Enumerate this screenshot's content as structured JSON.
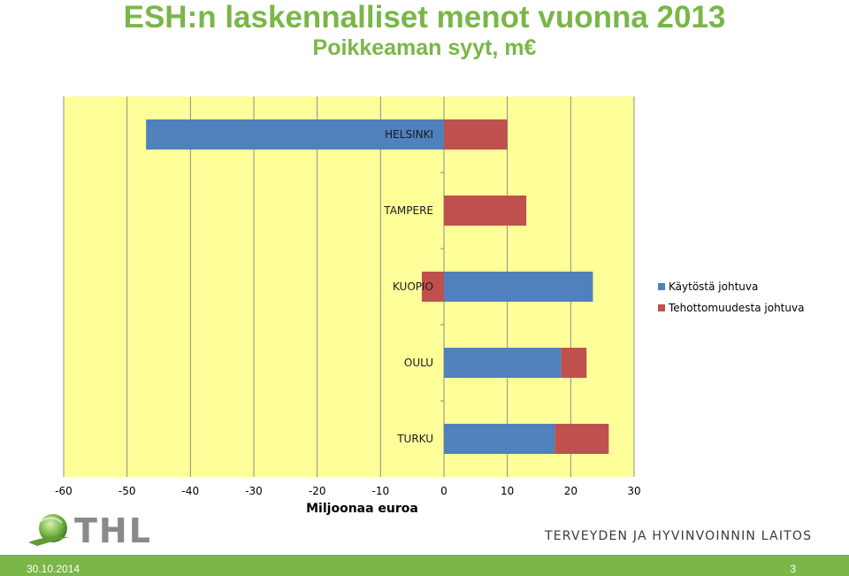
{
  "header": {
    "title": "ESH:n laskennalliset menot vuonna 2013",
    "subtitle": "Poikkeaman syyt, m€"
  },
  "colors": {
    "accent": "#7ab648",
    "plot_bg": "#ffff99",
    "series1": "#4f81bd",
    "series2": "#c0504d"
  },
  "chart_data": {
    "type": "bar",
    "orientation": "horizontal",
    "stacked": true,
    "categories": [
      "HELSINKI",
      "TAMPERE",
      "KUOPIO",
      "OULU",
      "TURKU"
    ],
    "series": [
      {
        "name": "Käytöstä johtuva",
        "values": [
          -47,
          0,
          23.5,
          18.5,
          17.5
        ]
      },
      {
        "name": "Tehottomuudesta johtuva",
        "values": [
          10,
          13,
          -3.5,
          4,
          8.5
        ]
      }
    ],
    "xlim": [
      -60,
      30
    ],
    "xticks": [
      -60,
      -50,
      -40,
      -30,
      -20,
      -10,
      0,
      10,
      20,
      30
    ],
    "xlabel": "Miljoonaa euroa",
    "ylabel": "",
    "grid": "vertical",
    "legend_position": "right"
  },
  "logo": {
    "text": "THL"
  },
  "institute": "TERVEYDEN JA HYVINVOINNIN LAITOS",
  "footer": {
    "date": "30.10.2014",
    "page": "3"
  }
}
